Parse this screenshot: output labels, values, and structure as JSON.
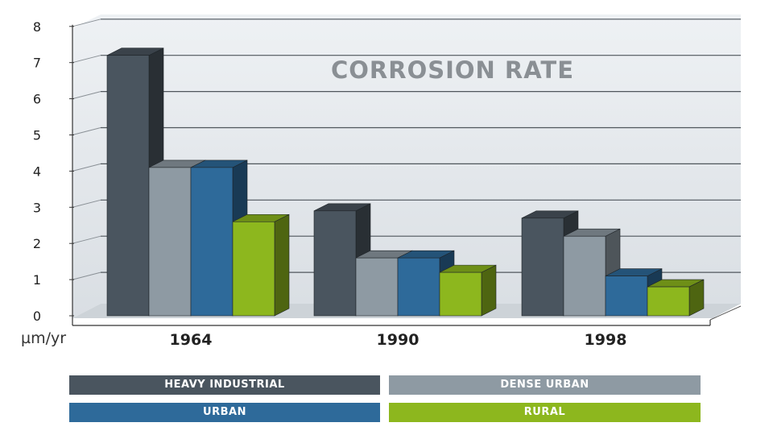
{
  "chart_data": {
    "type": "bar",
    "title": "CORROSION RATE",
    "ylabel": "µm/yr",
    "xlabel": "",
    "categories": [
      "1964",
      "1990",
      "1998"
    ],
    "ylim": [
      0,
      8
    ],
    "yticks": [
      0,
      1,
      2,
      3,
      4,
      5,
      6,
      7,
      8
    ],
    "grid": true,
    "legend_position": "bottom",
    "series": [
      {
        "name": "HEAVY INDUSTRIAL",
        "color": "#4a555f",
        "values": [
          7.2,
          2.9,
          2.7
        ]
      },
      {
        "name": "DENSE URBAN",
        "color": "#8e9aa3",
        "values": [
          4.1,
          1.6,
          2.2
        ]
      },
      {
        "name": "URBAN",
        "color": "#2e6a9a",
        "values": [
          4.1,
          1.6,
          1.1
        ]
      },
      {
        "name": "RURAL",
        "color": "#8db71e",
        "values": [
          2.6,
          1.2,
          0.8
        ]
      }
    ]
  }
}
